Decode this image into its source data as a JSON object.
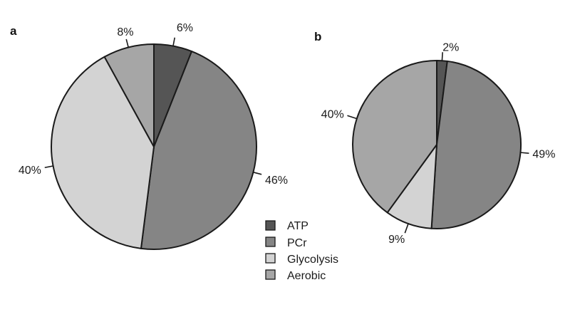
{
  "chart_data": [
    {
      "type": "pie",
      "panel": "a",
      "categories": [
        "ATP",
        "PCr",
        "Glycolysis",
        "Aerobic"
      ],
      "values": [
        6,
        46,
        40,
        8
      ],
      "labels": [
        "6%",
        "46%",
        "40%",
        "8%"
      ]
    },
    {
      "type": "pie",
      "panel": "b",
      "categories": [
        "ATP",
        "PCr",
        "Glycolysis",
        "Aerobic"
      ],
      "values": [
        2,
        49,
        9,
        40
      ],
      "labels": [
        "2%",
        "49%",
        "9%",
        "40%"
      ]
    }
  ],
  "legend": {
    "placement": "bottom-center",
    "entries": [
      "ATP",
      "PCr",
      "Glycolysis",
      "Aerobic"
    ]
  },
  "colors": {
    "ATP": "#555555",
    "PCr": "#858585",
    "Glycolysis": "#d3d3d3",
    "Aerobic": "#a6a6a6",
    "outline": "#1a1a1a"
  }
}
